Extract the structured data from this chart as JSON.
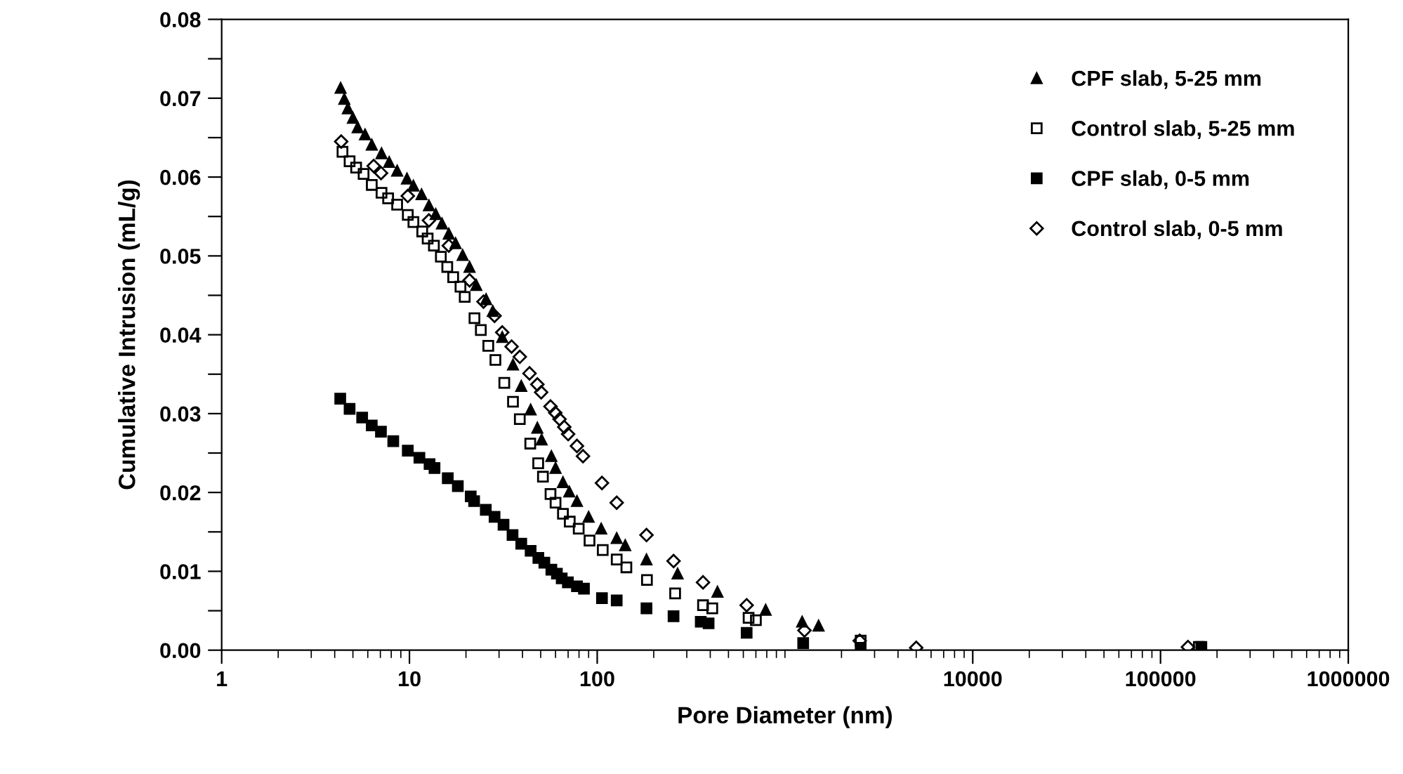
{
  "chart_data": {
    "type": "scatter",
    "xlabel": "Pore Diameter (nm)",
    "ylabel": "Cumulative Intrusion (mL/g)",
    "log": "x",
    "grid": false,
    "legend": "top right",
    "xlim": [
      1,
      1000000
    ],
    "xticks": [
      1,
      10,
      100,
      10000,
      100000,
      1000000
    ],
    "ylim": [
      0,
      0.08
    ],
    "yticks": [
      {
        "value": 0,
        "label": "0.00"
      },
      {
        "value": 0.005,
        "label": null
      },
      0.01,
      {
        "value": 0.015,
        "label": null
      },
      0.02,
      {
        "value": 0.025,
        "label": null
      },
      0.03,
      {
        "value": 0.035,
        "label": null
      },
      0.04,
      {
        "value": 0.045,
        "label": null
      },
      0.05,
      {
        "value": 0.055,
        "label": null
      },
      0.06,
      {
        "value": 0.065,
        "label": null
      },
      0.07,
      {
        "value": 0.075,
        "label": null
      },
      0.08
    ],
    "series": [
      {
        "name": "CPF slab, 5-25 mm",
        "color": "#000000",
        "marker": "triangle",
        "x": [
          4.3,
          4.5,
          4.7,
          5.0,
          5.3,
          5.8,
          6.3,
          7.1,
          7.8,
          8.6,
          9.7,
          10.5,
          11.6,
          12.7,
          13.8,
          14.9,
          16.2,
          17.6,
          19.2,
          20.9,
          22.7,
          25.6,
          27.8,
          31.2,
          35.6,
          39.4,
          44.2,
          48,
          50.6,
          57,
          60,
          65.7,
          71,
          78,
          90,
          105,
          127,
          141,
          183,
          268,
          437,
          789,
          1234,
          1510
        ],
        "values": [
          0.0713,
          0.0699,
          0.0687,
          0.0675,
          0.0663,
          0.0654,
          0.0641,
          0.063,
          0.0619,
          0.0608,
          0.0598,
          0.0589,
          0.0578,
          0.0564,
          0.0553,
          0.0541,
          0.0528,
          0.0516,
          0.0501,
          0.0486,
          0.0463,
          0.0445,
          0.043,
          0.0397,
          0.0362,
          0.0335,
          0.0305,
          0.0282,
          0.0267,
          0.0246,
          0.0231,
          0.0213,
          0.0201,
          0.0189,
          0.0169,
          0.0154,
          0.0142,
          0.0133,
          0.0115,
          0.0097,
          0.0074,
          0.0051,
          0.0036,
          0.0031
        ]
      },
      {
        "name": "Control slab, 5-25 mm",
        "color": "#000000",
        "marker": "square",
        "x": [
          4.4,
          4.8,
          5.2,
          5.7,
          6.3,
          7.1,
          7.7,
          8.6,
          9.8,
          10.5,
          11.7,
          12.5,
          13.5,
          14.7,
          15.9,
          17.1,
          18.7,
          19.7,
          22.2,
          24,
          26.3,
          28.7,
          32,
          35.6,
          38.7,
          44,
          48.5,
          51.4,
          56.4,
          60,
          65.7,
          71.4,
          79.7,
          91,
          107,
          127,
          143,
          184,
          260,
          366,
          410,
          640,
          700,
          2530,
          160000
        ],
        "values": [
          0.0632,
          0.062,
          0.0612,
          0.0604,
          0.059,
          0.058,
          0.0573,
          0.0565,
          0.0552,
          0.0543,
          0.0531,
          0.0522,
          0.0513,
          0.0499,
          0.0486,
          0.0473,
          0.0461,
          0.0448,
          0.0421,
          0.0406,
          0.0386,
          0.0368,
          0.0339,
          0.0315,
          0.0293,
          0.0262,
          0.0237,
          0.022,
          0.0198,
          0.0187,
          0.0173,
          0.0163,
          0.0154,
          0.0139,
          0.0127,
          0.0115,
          0.0105,
          0.0089,
          0.0072,
          0.0057,
          0.0053,
          0.0041,
          0.0038,
          0.0012,
          0.0004
        ]
      },
      {
        "name": "CPF slab, 0-5 mm",
        "color": "#000000",
        "marker": "square",
        "x": [
          4.28,
          4.8,
          5.6,
          6.3,
          7.05,
          8.2,
          9.8,
          11.3,
          12.8,
          13.6,
          16,
          18.1,
          21.2,
          22.1,
          25.5,
          28.4,
          31.7,
          35.4,
          39.4,
          44.2,
          48.6,
          52.3,
          57,
          61,
          64.7,
          69.8,
          78,
          85,
          106,
          127,
          183,
          255,
          356,
          392,
          625,
          1250,
          2530,
          165000
        ],
        "values": [
          0.0319,
          0.0306,
          0.0295,
          0.0285,
          0.0277,
          0.0265,
          0.0253,
          0.0244,
          0.0236,
          0.0231,
          0.0218,
          0.0208,
          0.0195,
          0.0189,
          0.0178,
          0.0169,
          0.0159,
          0.0146,
          0.0135,
          0.0126,
          0.0117,
          0.0111,
          0.0102,
          0.0097,
          0.0091,
          0.0086,
          0.0081,
          0.0078,
          0.0066,
          0.0063,
          0.0053,
          0.0043,
          0.0036,
          0.0034,
          0.0022,
          0.0009,
          0.0003,
          0.0004
        ]
      },
      {
        "name": "Control slab, 0-5 mm",
        "color": "#000000",
        "marker": "diamond",
        "x": [
          4.33,
          6.45,
          7.06,
          9.8,
          12.7,
          16.2,
          20.9,
          24.8,
          28.4,
          31.2,
          35,
          38.7,
          43.6,
          48,
          50.3,
          56.4,
          59.8,
          63,
          66.8,
          70,
          78,
          84,
          106,
          127,
          183,
          255,
          366,
          625,
          1270,
          2500,
          5000,
          140000
        ],
        "values": [
          0.0645,
          0.0614,
          0.0605,
          0.0576,
          0.0545,
          0.0513,
          0.0469,
          0.0442,
          0.0424,
          0.0403,
          0.0385,
          0.0372,
          0.0351,
          0.0337,
          0.0327,
          0.0309,
          0.0301,
          0.0293,
          0.0283,
          0.0274,
          0.0259,
          0.0246,
          0.0212,
          0.0187,
          0.0146,
          0.0113,
          0.0086,
          0.0057,
          0.0025,
          0.0012,
          0.0003,
          0.0004
        ]
      }
    ]
  }
}
